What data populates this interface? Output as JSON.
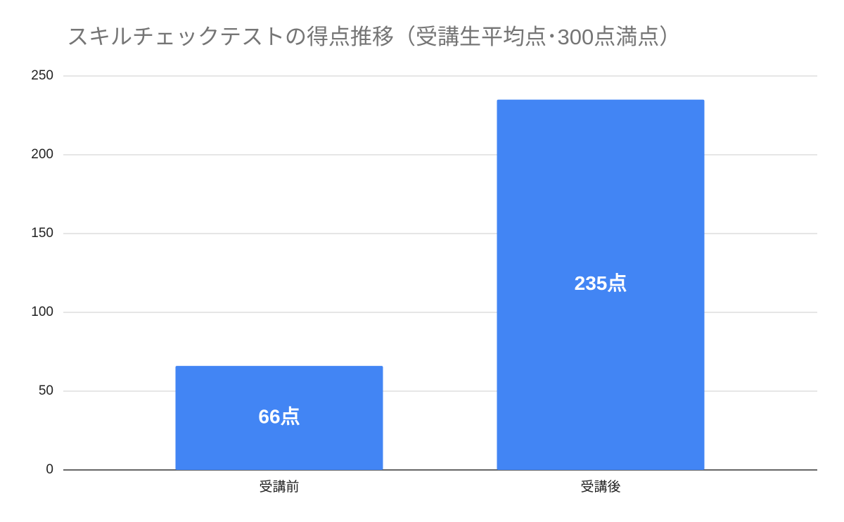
{
  "chart_data": {
    "type": "bar",
    "title": "スキルチェックテストの得点推移（受講生平均点･300点満点）",
    "categories": [
      "受講前",
      "受講後"
    ],
    "values": [
      66,
      235
    ],
    "value_labels": [
      "66点",
      "235点"
    ],
    "color": "#4285f4",
    "ylim": [
      0,
      250
    ],
    "yticks": [
      0,
      50,
      100,
      150,
      200,
      250
    ],
    "grid": true
  }
}
